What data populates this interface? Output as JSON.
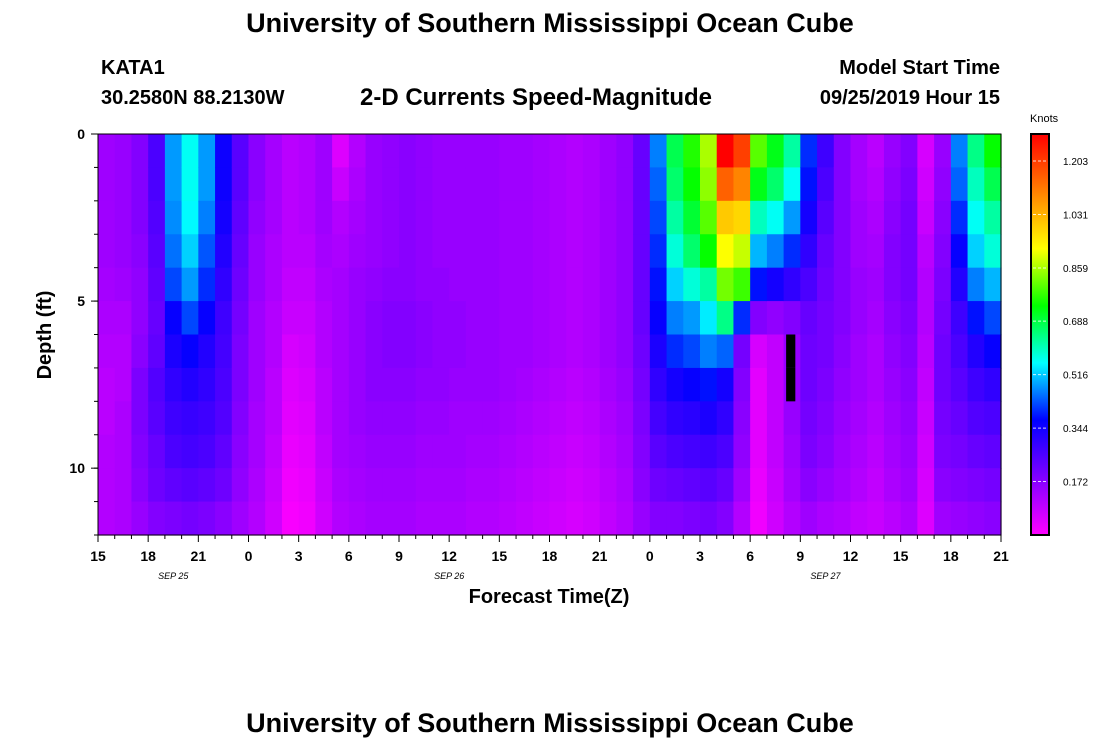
{
  "header": {
    "title": "University of Southern Mississippi Ocean Cube",
    "station_id": "KATA1",
    "station_coords": "30.2580N 88.2130W",
    "chart_title": "2-D Currents Speed-Magnitude",
    "model_start_label": "Model Start Time",
    "model_start_value": "09/25/2019 Hour 15"
  },
  "footer": {
    "title": "University of Southern Mississippi Ocean Cube"
  },
  "colorbar": {
    "units": "Knots",
    "min": 0,
    "max": 1.29,
    "tick_labels": [
      "1.203",
      "1.031",
      "0.859",
      "0.688",
      "0.516",
      "0.344",
      "0.172"
    ]
  },
  "chart_data": {
    "type": "heatmap",
    "xlabel": "Forecast Time(Z)",
    "ylabel": "Depth (ft)",
    "x_tick_labels": [
      "15",
      "18",
      "21",
      "0",
      "3",
      "6",
      "9",
      "12",
      "15",
      "18",
      "21",
      "0",
      "3",
      "6",
      "9",
      "12",
      "15",
      "18",
      "21"
    ],
    "date_labels": [
      {
        "label": "SEP 25",
        "tick": 1.5
      },
      {
        "label": "SEP 26",
        "tick": 7
      },
      {
        "label": "SEP 27",
        "tick": 14.5
      }
    ],
    "y_tick_labels": [
      "0",
      "5",
      "10"
    ],
    "ylim": [
      0,
      12
    ],
    "y_inverted": true,
    "x_steps": 54,
    "x_step_hours": 1,
    "depth_levels": 12,
    "colorscale": [
      "#ff00ff",
      "#8000ff",
      "#0000ff",
      "#00ffff",
      "#00ff00",
      "#ffff00",
      "#ff8000",
      "#ff0000"
    ],
    "column_profiles": [
      [
        0.14,
        0.14,
        0.14,
        0.14,
        0.13,
        0.12,
        0.11,
        0.1,
        0.1,
        0.11,
        0.11,
        0.11
      ],
      [
        0.15,
        0.15,
        0.15,
        0.15,
        0.14,
        0.12,
        0.11,
        0.11,
        0.12,
        0.12,
        0.12,
        0.12
      ],
      [
        0.18,
        0.18,
        0.18,
        0.17,
        0.16,
        0.16,
        0.17,
        0.19,
        0.19,
        0.18,
        0.17,
        0.15
      ],
      [
        0.26,
        0.26,
        0.25,
        0.24,
        0.23,
        0.22,
        0.23,
        0.25,
        0.24,
        0.22,
        0.21,
        0.18
      ],
      [
        0.48,
        0.48,
        0.47,
        0.45,
        0.42,
        0.36,
        0.33,
        0.3,
        0.28,
        0.26,
        0.23,
        0.19
      ],
      [
        0.56,
        0.56,
        0.55,
        0.52,
        0.48,
        0.42,
        0.36,
        0.32,
        0.29,
        0.27,
        0.24,
        0.2
      ],
      [
        0.48,
        0.48,
        0.46,
        0.43,
        0.4,
        0.36,
        0.32,
        0.3,
        0.28,
        0.26,
        0.23,
        0.19
      ],
      [
        0.35,
        0.35,
        0.34,
        0.32,
        0.3,
        0.28,
        0.27,
        0.26,
        0.25,
        0.23,
        0.21,
        0.17
      ],
      [
        0.24,
        0.24,
        0.23,
        0.22,
        0.21,
        0.2,
        0.19,
        0.19,
        0.18,
        0.17,
        0.16,
        0.14
      ],
      [
        0.17,
        0.17,
        0.16,
        0.15,
        0.15,
        0.14,
        0.14,
        0.14,
        0.13,
        0.13,
        0.12,
        0.11
      ],
      [
        0.13,
        0.13,
        0.13,
        0.12,
        0.12,
        0.11,
        0.11,
        0.1,
        0.1,
        0.09,
        0.08,
        0.07
      ],
      [
        0.1,
        0.1,
        0.1,
        0.1,
        0.09,
        0.08,
        0.06,
        0.05,
        0.04,
        0.03,
        0.02,
        0.01
      ],
      [
        0.11,
        0.11,
        0.11,
        0.1,
        0.09,
        0.08,
        0.07,
        0.06,
        0.05,
        0.04,
        0.03,
        0.02
      ],
      [
        0.14,
        0.14,
        0.14,
        0.13,
        0.12,
        0.11,
        0.11,
        0.1,
        0.1,
        0.09,
        0.08,
        0.07
      ],
      [
        0.05,
        0.08,
        0.11,
        0.12,
        0.13,
        0.13,
        0.13,
        0.13,
        0.13,
        0.13,
        0.12,
        0.11
      ],
      [
        0.11,
        0.12,
        0.13,
        0.14,
        0.15,
        0.15,
        0.15,
        0.15,
        0.15,
        0.14,
        0.13,
        0.12
      ],
      [
        0.15,
        0.15,
        0.15,
        0.15,
        0.16,
        0.17,
        0.17,
        0.17,
        0.16,
        0.15,
        0.14,
        0.13
      ],
      [
        0.16,
        0.16,
        0.16,
        0.16,
        0.17,
        0.18,
        0.18,
        0.17,
        0.16,
        0.15,
        0.14,
        0.13
      ],
      [
        0.17,
        0.17,
        0.17,
        0.17,
        0.17,
        0.18,
        0.18,
        0.17,
        0.16,
        0.15,
        0.14,
        0.13
      ],
      [
        0.16,
        0.16,
        0.16,
        0.16,
        0.16,
        0.17,
        0.17,
        0.16,
        0.15,
        0.14,
        0.13,
        0.12
      ],
      [
        0.15,
        0.15,
        0.15,
        0.15,
        0.16,
        0.16,
        0.16,
        0.16,
        0.15,
        0.14,
        0.13,
        0.12
      ],
      [
        0.15,
        0.15,
        0.15,
        0.15,
        0.15,
        0.16,
        0.16,
        0.15,
        0.14,
        0.14,
        0.13,
        0.12
      ],
      [
        0.15,
        0.15,
        0.15,
        0.15,
        0.15,
        0.15,
        0.15,
        0.15,
        0.14,
        0.13,
        0.12,
        0.11
      ],
      [
        0.15,
        0.15,
        0.15,
        0.15,
        0.15,
        0.15,
        0.15,
        0.15,
        0.14,
        0.13,
        0.12,
        0.11
      ],
      [
        0.14,
        0.14,
        0.14,
        0.14,
        0.14,
        0.14,
        0.14,
        0.14,
        0.13,
        0.12,
        0.11,
        0.1
      ],
      [
        0.14,
        0.14,
        0.14,
        0.14,
        0.14,
        0.14,
        0.14,
        0.13,
        0.12,
        0.11,
        0.1,
        0.09
      ],
      [
        0.13,
        0.13,
        0.13,
        0.13,
        0.13,
        0.13,
        0.13,
        0.12,
        0.11,
        0.1,
        0.09,
        0.08
      ],
      [
        0.12,
        0.12,
        0.12,
        0.12,
        0.12,
        0.12,
        0.12,
        0.11,
        0.1,
        0.09,
        0.08,
        0.07
      ],
      [
        0.11,
        0.11,
        0.11,
        0.11,
        0.11,
        0.11,
        0.11,
        0.1,
        0.09,
        0.08,
        0.07,
        0.06
      ],
      [
        0.12,
        0.12,
        0.12,
        0.12,
        0.12,
        0.12,
        0.12,
        0.11,
        0.1,
        0.09,
        0.08,
        0.07
      ],
      [
        0.14,
        0.14,
        0.14,
        0.14,
        0.14,
        0.14,
        0.14,
        0.13,
        0.12,
        0.11,
        0.1,
        0.09
      ],
      [
        0.16,
        0.16,
        0.16,
        0.16,
        0.16,
        0.16,
        0.16,
        0.15,
        0.14,
        0.13,
        0.12,
        0.11
      ],
      [
        0.22,
        0.22,
        0.22,
        0.22,
        0.22,
        0.22,
        0.21,
        0.2,
        0.19,
        0.18,
        0.17,
        0.15
      ],
      [
        0.46,
        0.44,
        0.42,
        0.4,
        0.38,
        0.36,
        0.33,
        0.3,
        0.27,
        0.24,
        0.21,
        0.18
      ],
      [
        0.68,
        0.66,
        0.62,
        0.58,
        0.52,
        0.46,
        0.4,
        0.34,
        0.3,
        0.26,
        0.22,
        0.18
      ],
      [
        0.76,
        0.74,
        0.7,
        0.66,
        0.58,
        0.48,
        0.42,
        0.36,
        0.31,
        0.27,
        0.23,
        0.19
      ],
      [
        0.86,
        0.84,
        0.8,
        0.74,
        0.62,
        0.54,
        0.46,
        0.38,
        0.33,
        0.28,
        0.24,
        0.2
      ],
      [
        1.3,
        1.15,
        1.0,
        0.92,
        0.82,
        0.64,
        0.44,
        0.34,
        0.3,
        0.26,
        0.22,
        0.18
      ],
      [
        1.2,
        1.1,
        0.98,
        0.88,
        0.78,
        0.4,
        0.2,
        0.18,
        0.17,
        0.16,
        0.14,
        0.11
      ],
      [
        0.8,
        0.72,
        0.6,
        0.5,
        0.38,
        0.18,
        0.06,
        0.04,
        0.04,
        0.04,
        0.03,
        0.02
      ],
      [
        0.72,
        0.66,
        0.56,
        0.46,
        0.34,
        0.16,
        0.09,
        0.09,
        0.09,
        0.09,
        0.08,
        0.07
      ],
      [
        0.62,
        0.56,
        0.48,
        0.4,
        0.3,
        0.18,
        0.15,
        0.15,
        0.15,
        0.14,
        0.13,
        0.11
      ],
      [
        0.4,
        0.38,
        0.34,
        0.3,
        0.26,
        0.22,
        0.21,
        0.21,
        0.2,
        0.19,
        0.17,
        0.14
      ],
      [
        0.28,
        0.26,
        0.24,
        0.22,
        0.21,
        0.2,
        0.2,
        0.19,
        0.18,
        0.17,
        0.15,
        0.12
      ],
      [
        0.18,
        0.18,
        0.18,
        0.18,
        0.18,
        0.18,
        0.17,
        0.16,
        0.15,
        0.14,
        0.13,
        0.11
      ],
      [
        0.13,
        0.13,
        0.14,
        0.14,
        0.15,
        0.15,
        0.14,
        0.14,
        0.13,
        0.12,
        0.11,
        0.09
      ],
      [
        0.1,
        0.11,
        0.12,
        0.13,
        0.14,
        0.13,
        0.12,
        0.12,
        0.11,
        0.1,
        0.09,
        0.08
      ],
      [
        0.15,
        0.16,
        0.17,
        0.18,
        0.18,
        0.17,
        0.16,
        0.15,
        0.14,
        0.13,
        0.12,
        0.1
      ],
      [
        0.18,
        0.19,
        0.2,
        0.2,
        0.2,
        0.19,
        0.18,
        0.17,
        0.16,
        0.15,
        0.14,
        0.12
      ],
      [
        0.06,
        0.07,
        0.08,
        0.1,
        0.11,
        0.11,
        0.1,
        0.09,
        0.08,
        0.07,
        0.06,
        0.05
      ],
      [
        0.15,
        0.16,
        0.17,
        0.18,
        0.19,
        0.2,
        0.21,
        0.21,
        0.2,
        0.19,
        0.17,
        0.14
      ],
      [
        0.46,
        0.44,
        0.4,
        0.36,
        0.32,
        0.28,
        0.26,
        0.24,
        0.22,
        0.2,
        0.18,
        0.15
      ],
      [
        0.64,
        0.6,
        0.56,
        0.52,
        0.46,
        0.38,
        0.32,
        0.28,
        0.25,
        0.22,
        0.19,
        0.16
      ],
      [
        0.74,
        0.68,
        0.62,
        0.58,
        0.5,
        0.42,
        0.36,
        0.3,
        0.26,
        0.23,
        0.2,
        0.17
      ]
    ],
    "missing_cells": [
      {
        "col": 41,
        "row": 6
      },
      {
        "col": 41,
        "row": 7
      }
    ]
  }
}
